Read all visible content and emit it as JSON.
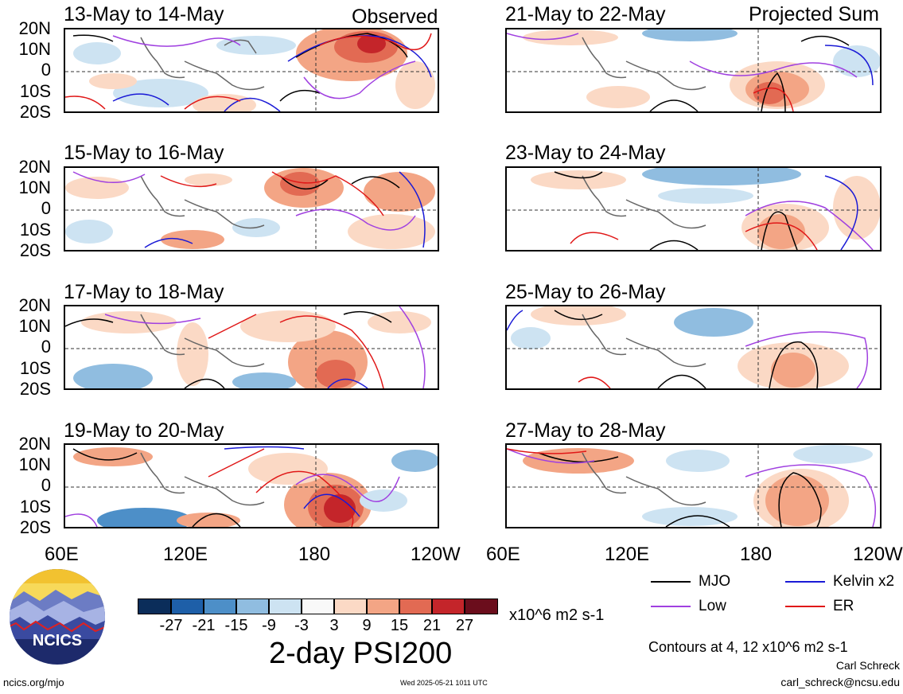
{
  "panels_left": [
    {
      "title": "13-May to 14-May",
      "tag": "Observed"
    },
    {
      "title": "15-May to 16-May",
      "tag": ""
    },
    {
      "title": "17-May to 18-May",
      "tag": ""
    },
    {
      "title": "19-May to 20-May",
      "tag": ""
    }
  ],
  "panels_right": [
    {
      "title": "21-May to 22-May",
      "tag": "Projected Sum"
    },
    {
      "title": "23-May to 24-May",
      "tag": ""
    },
    {
      "title": "25-May to 26-May",
      "tag": ""
    },
    {
      "title": "27-May to 28-May",
      "tag": ""
    }
  ],
  "lat_labels": [
    "20N",
    "10N",
    "0",
    "10S",
    "20S"
  ],
  "lon_labels_left": [
    "60E",
    "120E",
    "180",
    "120W"
  ],
  "lon_labels_right": [
    "60E",
    "120E",
    "180",
    "120W"
  ],
  "colorbar": {
    "labels": [
      "-27",
      "-21",
      "-15",
      "-9",
      "-3",
      "3",
      "9",
      "15",
      "21",
      "27"
    ],
    "colors": [
      "#0b2d5a",
      "#1e5fa8",
      "#4d8fc8",
      "#90bde0",
      "#cde3f2",
      "#f9f9f9",
      "#fbd9c5",
      "#f3a585",
      "#e26a53",
      "#c4252a",
      "#6b0d1c"
    ],
    "units": "x10^6 m2 s-1"
  },
  "figure_title": "2-day PSI200",
  "legend": [
    {
      "label": "MJO",
      "color": "#000000"
    },
    {
      "label": "Kelvin x2",
      "color": "#1a1ad6"
    },
    {
      "label": "Low",
      "color": "#a040e0"
    },
    {
      "label": "ER",
      "color": "#e01818"
    }
  ],
  "contour_note": "Contours at 4, 12 x10^6 m2 s-1",
  "author": "Carl Schreck",
  "email": "carl_schreck@ncsu.edu",
  "website": "ncics.org/mjo",
  "timestamp": "Wed 2025-05-21 1011 UTC",
  "logo_text": "NCICS"
}
